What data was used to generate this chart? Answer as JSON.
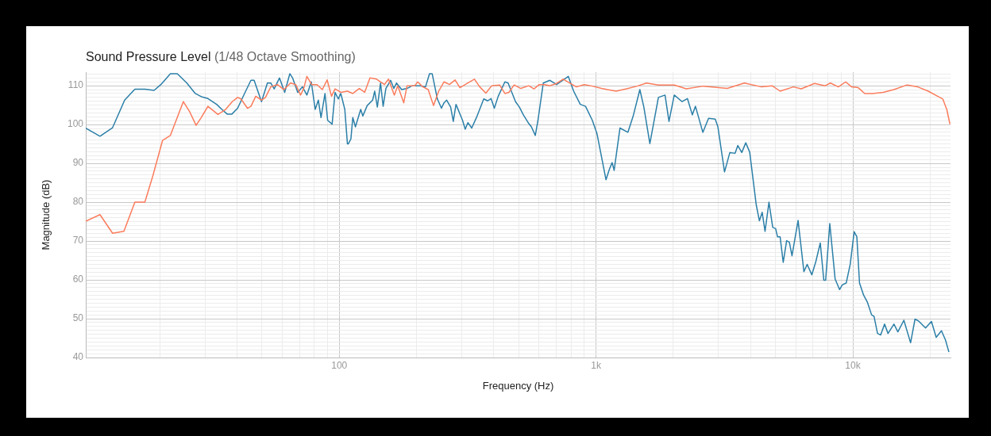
{
  "chart_data": {
    "type": "line",
    "title": "Sound Pressure Level",
    "subtitle": "(1/48 Octave Smoothing)",
    "xlabel": "Frequency (Hz)",
    "ylabel": "Magnitude (dB)",
    "log": "x",
    "grid": true,
    "legend": false,
    "marker": "none",
    "line_style": "solid",
    "xlim": [
      10.3,
      24000
    ],
    "ylim": [
      40,
      113.5
    ],
    "xticks": [
      {
        "value": 20,
        "label": null
      },
      {
        "value": 30,
        "label": null
      },
      {
        "value": 40,
        "label": null
      },
      {
        "value": 50,
        "label": null
      },
      {
        "value": 60,
        "label": null
      },
      {
        "value": 70,
        "label": null
      },
      {
        "value": 80,
        "label": null
      },
      {
        "value": 90,
        "label": null
      },
      100,
      {
        "value": 200,
        "label": null
      },
      {
        "value": 300,
        "label": null
      },
      {
        "value": 400,
        "label": null
      },
      {
        "value": 500,
        "label": null
      },
      {
        "value": 600,
        "label": null
      },
      {
        "value": 700,
        "label": null
      },
      {
        "value": 800,
        "label": null
      },
      {
        "value": 900,
        "label": null
      },
      {
        "value": 1000,
        "label": "1k"
      },
      {
        "value": 2000,
        "label": null
      },
      {
        "value": 3000,
        "label": null
      },
      {
        "value": 4000,
        "label": null
      },
      {
        "value": 5000,
        "label": null
      },
      {
        "value": 6000,
        "label": null
      },
      {
        "value": 7000,
        "label": null
      },
      {
        "value": 8000,
        "label": null
      },
      {
        "value": 9000,
        "label": null
      },
      {
        "value": 10000,
        "label": "10k"
      },
      {
        "value": 20000,
        "label": null
      }
    ],
    "yticks": [
      40,
      {
        "value": 41,
        "label": null
      },
      {
        "value": 42,
        "label": null
      },
      {
        "value": 43,
        "label": null
      },
      {
        "value": 44,
        "label": null
      },
      {
        "value": 45,
        "label": null
      },
      {
        "value": 46,
        "label": null
      },
      {
        "value": 47,
        "label": null
      },
      {
        "value": 48,
        "label": null
      },
      {
        "value": 49,
        "label": null
      },
      50,
      {
        "value": 51,
        "label": null
      },
      {
        "value": 52,
        "label": null
      },
      {
        "value": 53,
        "label": null
      },
      {
        "value": 54,
        "label": null
      },
      {
        "value": 55,
        "label": null
      },
      {
        "value": 56,
        "label": null
      },
      {
        "value": 57,
        "label": null
      },
      {
        "value": 58,
        "label": null
      },
      {
        "value": 59,
        "label": null
      },
      60,
      {
        "value": 61,
        "label": null
      },
      {
        "value": 62,
        "label": null
      },
      {
        "value": 63,
        "label": null
      },
      {
        "value": 64,
        "label": null
      },
      {
        "value": 65,
        "label": null
      },
      {
        "value": 66,
        "label": null
      },
      {
        "value": 67,
        "label": null
      },
      {
        "value": 68,
        "label": null
      },
      {
        "value": 69,
        "label": null
      },
      70,
      {
        "value": 71,
        "label": null
      },
      {
        "value": 72,
        "label": null
      },
      {
        "value": 73,
        "label": null
      },
      {
        "value": 74,
        "label": null
      },
      {
        "value": 75,
        "label": null
      },
      {
        "value": 76,
        "label": null
      },
      {
        "value": 77,
        "label": null
      },
      {
        "value": 78,
        "label": null
      },
      {
        "value": 79,
        "label": null
      },
      80,
      {
        "value": 81,
        "label": null
      },
      {
        "value": 82,
        "label": null
      },
      {
        "value": 83,
        "label": null
      },
      {
        "value": 84,
        "label": null
      },
      {
        "value": 85,
        "label": null
      },
      {
        "value": 86,
        "label": null
      },
      {
        "value": 87,
        "label": null
      },
      {
        "value": 88,
        "label": null
      },
      {
        "value": 89,
        "label": null
      },
      90,
      {
        "value": 91,
        "label": null
      },
      {
        "value": 92,
        "label": null
      },
      {
        "value": 93,
        "label": null
      },
      {
        "value": 94,
        "label": null
      },
      {
        "value": 95,
        "label": null
      },
      {
        "value": 96,
        "label": null
      },
      {
        "value": 97,
        "label": null
      },
      {
        "value": 98,
        "label": null
      },
      {
        "value": 99,
        "label": null
      },
      100,
      {
        "value": 101,
        "label": null
      },
      {
        "value": 102,
        "label": null
      },
      {
        "value": 103,
        "label": null
      },
      {
        "value": 104,
        "label": null
      },
      {
        "value": 105,
        "label": null
      },
      {
        "value": 106,
        "label": null
      },
      {
        "value": 107,
        "label": null
      },
      {
        "value": 108,
        "label": null
      },
      {
        "value": 109,
        "label": null
      },
      110,
      {
        "value": 111,
        "label": null
      },
      {
        "value": 112,
        "label": null
      },
      {
        "value": 113,
        "label": null
      }
    ],
    "series": [
      {
        "color": "#fb7c5c",
        "x": [
          10.3,
          11.7,
          13.1,
          14.5,
          16.0,
          17.5,
          18.8,
          20.5,
          22.0,
          24.7,
          26.2,
          27.7,
          29.0,
          30.8,
          33.7,
          36.1,
          38.3,
          40.2,
          41.4,
          43.9,
          45.3,
          47.3,
          49.8,
          51.6,
          54.1,
          57.4,
          60.9,
          64.6,
          67.7,
          70.7,
          72.7,
          74.8,
          78.1,
          81.9,
          85.9,
          89.7,
          93.3,
          96.3,
          101.4,
          107.6,
          112.9,
          119.7,
          125.6,
          131.7,
          139.7,
          150,
          155.5,
          163.8,
          169,
          178.3,
          183.6,
          197,
          201.9,
          211.6,
          222,
          232.8,
          243.9,
          255.9,
          268.5,
          282.6,
          295,
          316.8,
          336,
          352.5,
          372.4,
          392.3,
          421,
          441.6,
          457.7,
          479.7,
          509.3,
          547,
          573,
          601,
          630.6,
          661,
          702,
          744.5,
          789,
          838,
          900,
          967,
          1050,
          1197,
          1315,
          1446,
          1571,
          1749,
          2016,
          2244,
          2618,
          3243,
          3780,
          4412,
          4849,
          5208,
          5864,
          6297,
          7091,
          7796,
          8177,
          8780,
          9377,
          9885,
          10490,
          11126,
          11940,
          13120,
          14455,
          16250,
          17890,
          19660,
          21370,
          22390,
          23210,
          23880
        ],
        "values": [
          75.1,
          76.8,
          72.0,
          72.5,
          80.0,
          80.0,
          86.8,
          95.9,
          97.2,
          105.9,
          103.2,
          99.8,
          101.8,
          104.7,
          102.6,
          103.9,
          105.9,
          107.0,
          106.6,
          104.2,
          104.7,
          107.3,
          106.3,
          107.0,
          109.7,
          110.3,
          109.0,
          110.7,
          110.3,
          107.6,
          109.3,
          112.4,
          110.3,
          110.3,
          109.0,
          111.5,
          107.3,
          109.2,
          108.3,
          108.6,
          108.0,
          109.3,
          108.3,
          112.0,
          111.7,
          110.3,
          111.7,
          107.6,
          110.0,
          105.6,
          110.0,
          110.0,
          111.0,
          109.7,
          109.0,
          104.9,
          108.6,
          111.0,
          110.3,
          111.5,
          109.5,
          110.7,
          111.7,
          109.7,
          108.1,
          110.0,
          110.2,
          108.0,
          108.3,
          110.2,
          109.3,
          110.0,
          109.2,
          110.3,
          110.3,
          110.0,
          110.6,
          111.7,
          110.7,
          109.7,
          110.3,
          109.9,
          109.3,
          108.6,
          109.2,
          109.9,
          110.7,
          110.2,
          110.2,
          109.2,
          109.9,
          109.3,
          110.7,
          109.7,
          110.0,
          108.6,
          109.7,
          109.2,
          110.6,
          110.0,
          110.7,
          109.7,
          111.0,
          109.7,
          109.5,
          108.0,
          108.0,
          108.3,
          109.0,
          110.2,
          109.7,
          108.6,
          107.3,
          106.6,
          103.9,
          100.1
        ]
      },
      {
        "color": "#2b7fa8",
        "x": [
          10.3,
          11.7,
          13.1,
          14.6,
          16.0,
          17.5,
          19.0,
          20.2,
          22.0,
          23.4,
          25.5,
          27.5,
          29.2,
          30.8,
          33.3,
          34.9,
          36.6,
          38.2,
          40.2,
          43.2,
          45.3,
          46.6,
          49.8,
          52.5,
          54.1,
          55.8,
          58.5,
          61.3,
          64.2,
          65.8,
          68.9,
          71.9,
          74.8,
          77.8,
          80.6,
          82.9,
          84.9,
          88.0,
          90.1,
          93.8,
          96.3,
          99.1,
          101.4,
          105.1,
          107.6,
          108.4,
          111,
          112.9,
          115.6,
          121.2,
          123.5,
          128.5,
          134.9,
          137.4,
          140.7,
          144.8,
          148.2,
          151.9,
          158.5,
          163.1,
          167,
          175,
          183.6,
          192.4,
          206.7,
          216.7,
          224.6,
          230,
          241,
          250,
          255.9,
          262,
          271.5,
          278,
          284.8,
          302,
          309.4,
          316.8,
          328,
          344.2,
          365.3,
          378.6,
          390,
          401.6,
          416,
          441.6,
          454.6,
          485.6,
          503,
          521,
          544,
          560,
          580,
          594,
          623,
          661,
          702,
          740.6,
          780,
          818,
          868,
          910,
          967,
          1008,
          1093,
          1127,
          1155,
          1176,
          1239,
          1330,
          1395,
          1481,
          1535,
          1620,
          1749,
          1856,
          1923,
          2016,
          2163,
          2269,
          2370,
          2438,
          2605,
          2742,
          2911,
          2982,
          3164,
          3319,
          3479,
          3565,
          3693,
          3828,
          3965,
          4205,
          4326,
          4435,
          4550,
          4713,
          4875,
          5004,
          5086,
          5208,
          5355,
          5522,
          5660,
          5794,
          6119,
          6447,
          6637,
          6921,
          7174,
          7467,
          7707,
          7835,
          8130,
          8531,
          8875,
          9094,
          9423,
          9766,
          10118,
          10363,
          10615,
          11007,
          11400,
          11827,
          12090,
          12474,
          12830,
          13290,
          13707,
          14455,
          14970,
          15800,
          16780,
          17460,
          18100,
          19190,
          20230,
          21110,
          22130,
          22950,
          23660
        ],
        "values": [
          99.1,
          97.0,
          99.2,
          106.3,
          109.1,
          109.1,
          108.8,
          110.3,
          113.1,
          113.1,
          110.7,
          108.0,
          107.1,
          106.7,
          105.2,
          103.9,
          102.7,
          102.7,
          104.2,
          108.6,
          111.4,
          111.4,
          105.9,
          110.7,
          110.7,
          109.2,
          112.0,
          108.3,
          113.1,
          112.0,
          108.3,
          109.7,
          107.6,
          111.0,
          103.9,
          106.3,
          101.8,
          108.0,
          101.1,
          100.1,
          108.3,
          106.6,
          108.0,
          103.9,
          95.0,
          95.0,
          96.3,
          101.8,
          99.4,
          103.9,
          102.2,
          104.9,
          106.3,
          108.6,
          104.5,
          110.7,
          104.7,
          109.3,
          111.4,
          109.3,
          110.7,
          109.0,
          109.3,
          110.0,
          110.0,
          109.7,
          113.1,
          113.1,
          106.6,
          104.2,
          105.6,
          106.3,
          104.5,
          100.8,
          105.2,
          101.1,
          98.8,
          100.5,
          99.1,
          102.2,
          106.6,
          106.1,
          106.7,
          104.2,
          107.3,
          111.0,
          110.7,
          105.9,
          104.5,
          102.5,
          100.5,
          99.4,
          97.2,
          101.1,
          110.7,
          111.4,
          110.3,
          111.4,
          112.4,
          108.6,
          105.2,
          104.7,
          101.1,
          97.7,
          85.8,
          88.5,
          90.2,
          88.2,
          99.1,
          98.0,
          102.2,
          109.0,
          104.5,
          95.1,
          107.0,
          107.6,
          100.8,
          107.6,
          105.9,
          106.7,
          102.5,
          104.7,
          98.0,
          101.6,
          101.4,
          99.4,
          87.8,
          92.8,
          92.6,
          94.6,
          92.8,
          95.3,
          92.9,
          79.3,
          75.2,
          77.4,
          72.5,
          80.0,
          73.5,
          73.2,
          71.1,
          71.1,
          64.5,
          70.1,
          69.7,
          66.2,
          75.3,
          62.1,
          64.0,
          61.3,
          64.7,
          69.5,
          59.9,
          59.9,
          74.5,
          60.2,
          57.5,
          58.7,
          59.2,
          64.0,
          72.4,
          71.1,
          59.2,
          56.1,
          54.2,
          51.0,
          50.6,
          46.2,
          45.8,
          48.6,
          46.2,
          48.6,
          46.6,
          49.6,
          43.8,
          49.9,
          49.3,
          47.6,
          49.3,
          45.2,
          46.9,
          44.5,
          41.4
        ]
      }
    ]
  }
}
